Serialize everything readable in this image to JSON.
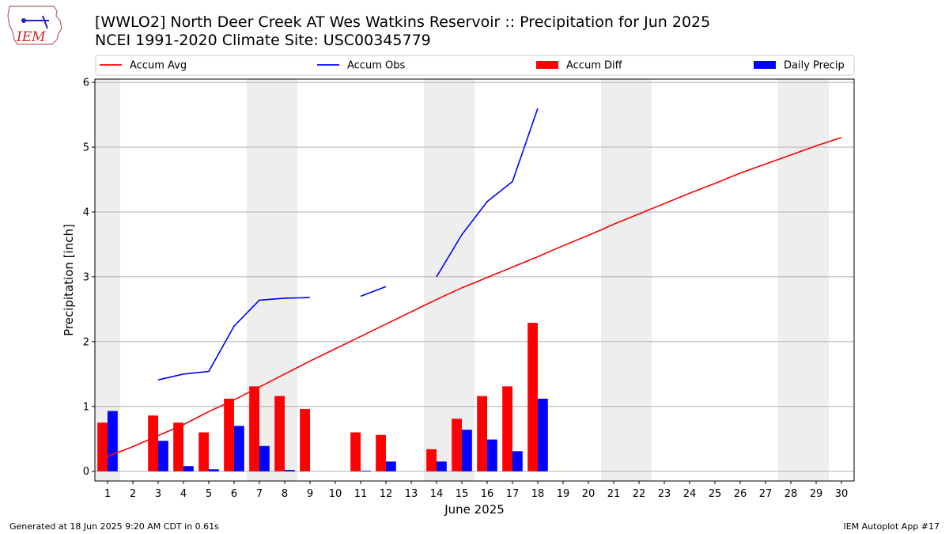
{
  "header": {
    "title_line1": "[WWLO2] North Deer Creek  AT Wes Watkins Reservoir :: Precipitation for Jun 2025",
    "title_line2": "NCEI 1991-2020 Climate Site: USC00345779"
  },
  "logo": {
    "text": "IEM",
    "icon": "iem-iowa-logo-icon"
  },
  "footer": {
    "left": "Generated at 18 Jun 2025 9:20 AM CDT in 0.61s",
    "right": "IEM Autoplot App #17"
  },
  "colors": {
    "avg": "#ff0000",
    "obs": "#0000ff",
    "diff": "#ff0000",
    "daily": "#0000ff",
    "weekend_band": "#eeeeee",
    "grid": "#b0b0b0"
  },
  "chart_data": {
    "type": "bar",
    "title": "[WWLO2] North Deer Creek  AT Wes Watkins Reservoir :: Precipitation for Jun 2025",
    "subtitle": "NCEI 1991-2020 Climate Site: USC00345779",
    "xlabel": "June 2025",
    "ylabel": "Precipitation [inch]",
    "xlim": [
      0.5,
      30.5
    ],
    "ylim": [
      -0.15,
      6.05
    ],
    "x_ticks": [
      1,
      2,
      3,
      4,
      5,
      6,
      7,
      8,
      9,
      10,
      11,
      12,
      13,
      14,
      15,
      16,
      17,
      18,
      19,
      20,
      21,
      22,
      23,
      24,
      25,
      26,
      27,
      28,
      29,
      30
    ],
    "y_ticks": [
      0,
      1,
      2,
      3,
      4,
      5,
      6
    ],
    "grid": "horizontal",
    "legend_position": "top",
    "weekend_bands": [
      [
        0.5,
        1.5
      ],
      [
        6.5,
        8.5
      ],
      [
        13.5,
        15.5
      ],
      [
        20.5,
        22.5
      ],
      [
        27.5,
        29.5
      ]
    ],
    "series": [
      {
        "name": "Accum Avg",
        "kind": "line",
        "x": [
          1,
          2,
          3,
          4,
          5,
          6,
          7,
          8,
          9,
          10,
          11,
          12,
          13,
          14,
          15,
          16,
          17,
          18,
          19,
          20,
          21,
          22,
          23,
          24,
          25,
          26,
          27,
          28,
          29,
          30
        ],
        "y": [
          0.23,
          0.38,
          0.55,
          0.72,
          0.92,
          1.1,
          1.3,
          1.5,
          1.7,
          1.89,
          2.08,
          2.27,
          2.46,
          2.65,
          2.83,
          2.99,
          3.15,
          3.31,
          3.48,
          3.64,
          3.81,
          3.97,
          4.13,
          4.29,
          4.44,
          4.6,
          4.74,
          4.88,
          5.02,
          5.15
        ]
      },
      {
        "name": "Accum Obs",
        "kind": "line",
        "segments": [
          {
            "x": [
              3,
              4,
              5,
              6,
              7,
              8,
              9
            ],
            "y": [
              1.41,
              1.5,
              1.54,
              2.24,
              2.64,
              2.67,
              2.68
            ]
          },
          {
            "x": [
              11,
              12
            ],
            "y": [
              2.7,
              2.85
            ]
          },
          {
            "x": [
              14,
              15,
              16,
              17,
              18
            ],
            "y": [
              3.0,
              3.65,
              4.16,
              4.47,
              5.6
            ]
          }
        ]
      },
      {
        "name": "Accum Diff",
        "kind": "bar",
        "x": [
          1,
          3,
          4,
          5,
          6,
          7,
          8,
          9,
          11,
          12,
          14,
          15,
          16,
          17,
          18
        ],
        "values": [
          0.75,
          0.86,
          0.75,
          0.6,
          1.12,
          1.31,
          1.16,
          0.96,
          0.6,
          0.56,
          0.34,
          0.81,
          1.16,
          1.31,
          2.29
        ]
      },
      {
        "name": "Daily Precip",
        "kind": "bar",
        "x": [
          1,
          3,
          4,
          5,
          6,
          7,
          8,
          11,
          12,
          14,
          15,
          16,
          17,
          18
        ],
        "values": [
          0.93,
          0.47,
          0.08,
          0.03,
          0.7,
          0.39,
          0.02,
          0.01,
          0.15,
          0.15,
          0.64,
          0.49,
          0.31,
          1.12
        ]
      }
    ]
  }
}
